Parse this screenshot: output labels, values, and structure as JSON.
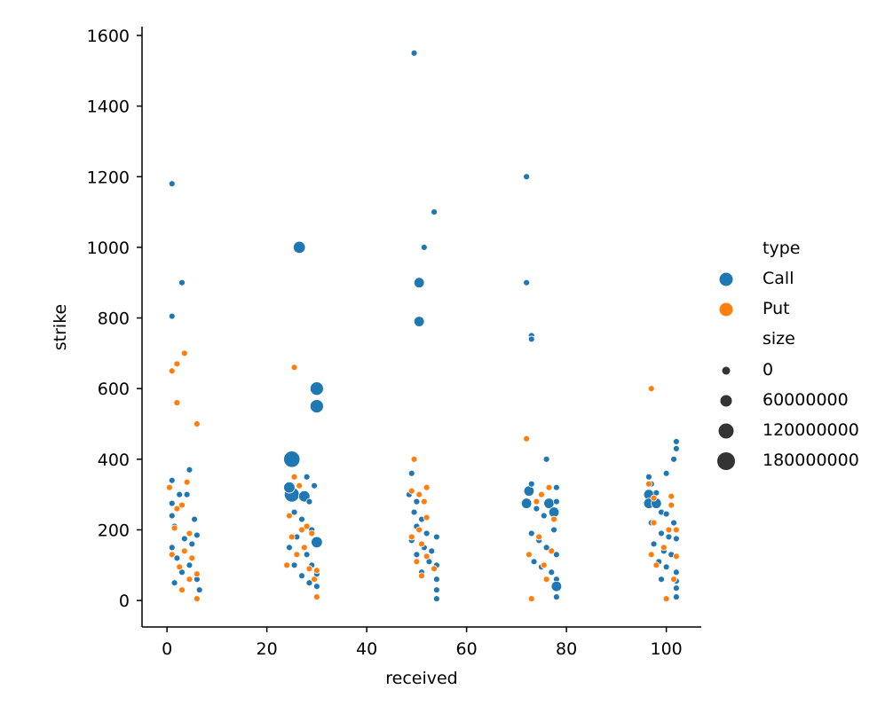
{
  "chart_data": {
    "type": "scatter",
    "title": "",
    "xlabel": "received",
    "ylabel": "strike",
    "xlim": [
      -5,
      107
    ],
    "ylim": [
      -75,
      1625
    ],
    "x_ticks": [
      0,
      20,
      40,
      60,
      80,
      100
    ],
    "y_ticks": [
      0,
      200,
      400,
      600,
      800,
      1000,
      1200,
      1400,
      1600
    ],
    "grid": false,
    "legend_placement": "right",
    "colors": {
      "Call": "#1f77b4",
      "Put": "#ff7f0e"
    },
    "legend": {
      "hue_title": "type",
      "hue_entries": [
        "Call",
        "Put"
      ],
      "size_title": "size",
      "size_entries": [
        "0",
        "60000000",
        "120000000",
        "180000000"
      ]
    },
    "series": [
      {
        "name": "Call",
        "points": [
          {
            "x": 1,
            "y": 1180,
            "size": 0
          },
          {
            "x": 3,
            "y": 900,
            "size": 0
          },
          {
            "x": 1,
            "y": 805,
            "size": 0
          },
          {
            "x": 1,
            "y": 340,
            "size": 0
          },
          {
            "x": 4.5,
            "y": 370,
            "size": 0
          },
          {
            "x": 2.5,
            "y": 300,
            "size": 0
          },
          {
            "x": 4,
            "y": 300,
            "size": 0
          },
          {
            "x": 1,
            "y": 275,
            "size": 0
          },
          {
            "x": 5.5,
            "y": 230,
            "size": 0
          },
          {
            "x": 1,
            "y": 240,
            "size": 0
          },
          {
            "x": 1.5,
            "y": 210,
            "size": 0
          },
          {
            "x": 6,
            "y": 185,
            "size": 0
          },
          {
            "x": 3.5,
            "y": 175,
            "size": 0
          },
          {
            "x": 5,
            "y": 160,
            "size": 0
          },
          {
            "x": 1,
            "y": 150,
            "size": 0
          },
          {
            "x": 2,
            "y": 120,
            "size": 0
          },
          {
            "x": 4.5,
            "y": 100,
            "size": 0
          },
          {
            "x": 6,
            "y": 60,
            "size": 0
          },
          {
            "x": 6.5,
            "y": 30,
            "size": 0
          },
          {
            "x": 3,
            "y": 80,
            "size": 0
          },
          {
            "x": 1.5,
            "y": 50,
            "size": 0
          },
          {
            "x": 26.5,
            "y": 1000,
            "size": 40000000
          },
          {
            "x": 30,
            "y": 600,
            "size": 60000000
          },
          {
            "x": 30,
            "y": 550,
            "size": 60000000
          },
          {
            "x": 25,
            "y": 400,
            "size": 120000000
          },
          {
            "x": 25,
            "y": 300,
            "size": 90000000
          },
          {
            "x": 28,
            "y": 350,
            "size": 0
          },
          {
            "x": 29.5,
            "y": 325,
            "size": 0
          },
          {
            "x": 24.5,
            "y": 320,
            "size": 30000000
          },
          {
            "x": 27.5,
            "y": 295,
            "size": 30000000
          },
          {
            "x": 28.5,
            "y": 280,
            "size": 0
          },
          {
            "x": 25.5,
            "y": 250,
            "size": 0
          },
          {
            "x": 27,
            "y": 230,
            "size": 0
          },
          {
            "x": 29,
            "y": 200,
            "size": 0
          },
          {
            "x": 30,
            "y": 165,
            "size": 30000000
          },
          {
            "x": 26,
            "y": 180,
            "size": 0
          },
          {
            "x": 24.5,
            "y": 150,
            "size": 0
          },
          {
            "x": 28,
            "y": 130,
            "size": 0
          },
          {
            "x": 29,
            "y": 100,
            "size": 0
          },
          {
            "x": 25.5,
            "y": 100,
            "size": 0
          },
          {
            "x": 27,
            "y": 70,
            "size": 0
          },
          {
            "x": 30,
            "y": 40,
            "size": 0
          },
          {
            "x": 30,
            "y": 75,
            "size": 0
          },
          {
            "x": 28.5,
            "y": 50,
            "size": 0
          },
          {
            "x": 49.5,
            "y": 1550,
            "size": 0
          },
          {
            "x": 53.5,
            "y": 1100,
            "size": 0
          },
          {
            "x": 51.5,
            "y": 1000,
            "size": 0
          },
          {
            "x": 50.5,
            "y": 900,
            "size": 20000000
          },
          {
            "x": 50.5,
            "y": 790,
            "size": 20000000
          },
          {
            "x": 49,
            "y": 360,
            "size": 0
          },
          {
            "x": 48.5,
            "y": 300,
            "size": 0
          },
          {
            "x": 50,
            "y": 280,
            "size": 0
          },
          {
            "x": 49.5,
            "y": 250,
            "size": 0
          },
          {
            "x": 51,
            "y": 230,
            "size": 0
          },
          {
            "x": 50,
            "y": 210,
            "size": 0
          },
          {
            "x": 52,
            "y": 190,
            "size": 0
          },
          {
            "x": 54,
            "y": 180,
            "size": 0
          },
          {
            "x": 49,
            "y": 170,
            "size": 0
          },
          {
            "x": 51.5,
            "y": 150,
            "size": 0
          },
          {
            "x": 53,
            "y": 140,
            "size": 0
          },
          {
            "x": 50,
            "y": 130,
            "size": 0
          },
          {
            "x": 52.5,
            "y": 110,
            "size": 0
          },
          {
            "x": 54,
            "y": 100,
            "size": 0
          },
          {
            "x": 54,
            "y": 60,
            "size": 0
          },
          {
            "x": 54,
            "y": 30,
            "size": 0
          },
          {
            "x": 54,
            "y": 5,
            "size": 0
          },
          {
            "x": 51,
            "y": 80,
            "size": 0
          },
          {
            "x": 72,
            "y": 1200,
            "size": 0
          },
          {
            "x": 72,
            "y": 900,
            "size": 0
          },
          {
            "x": 73,
            "y": 750,
            "size": 0
          },
          {
            "x": 73,
            "y": 740,
            "size": 0
          },
          {
            "x": 76,
            "y": 400,
            "size": 0
          },
          {
            "x": 72.5,
            "y": 310,
            "size": 20000000
          },
          {
            "x": 73,
            "y": 330,
            "size": 0
          },
          {
            "x": 72,
            "y": 275,
            "size": 20000000
          },
          {
            "x": 75,
            "y": 300,
            "size": 0
          },
          {
            "x": 78,
            "y": 320,
            "size": 0
          },
          {
            "x": 76.5,
            "y": 275,
            "size": 20000000
          },
          {
            "x": 78,
            "y": 280,
            "size": 0
          },
          {
            "x": 74,
            "y": 260,
            "size": 0
          },
          {
            "x": 75.5,
            "y": 240,
            "size": 0
          },
          {
            "x": 77.5,
            "y": 250,
            "size": 20000000
          },
          {
            "x": 77.5,
            "y": 200,
            "size": 0
          },
          {
            "x": 73,
            "y": 190,
            "size": 0
          },
          {
            "x": 74.5,
            "y": 170,
            "size": 0
          },
          {
            "x": 76,
            "y": 150,
            "size": 0
          },
          {
            "x": 78,
            "y": 130,
            "size": 0
          },
          {
            "x": 73.5,
            "y": 110,
            "size": 0
          },
          {
            "x": 75,
            "y": 95,
            "size": 0
          },
          {
            "x": 77,
            "y": 80,
            "size": 0
          },
          {
            "x": 78,
            "y": 60,
            "size": 0
          },
          {
            "x": 78,
            "y": 40,
            "size": 20000000
          },
          {
            "x": 78,
            "y": 10,
            "size": 0
          },
          {
            "x": 96.5,
            "y": 350,
            "size": 0
          },
          {
            "x": 102,
            "y": 450,
            "size": 0
          },
          {
            "x": 102,
            "y": 430,
            "size": 0
          },
          {
            "x": 101.5,
            "y": 400,
            "size": 0
          },
          {
            "x": 100,
            "y": 360,
            "size": 0
          },
          {
            "x": 97,
            "y": 330,
            "size": 0
          },
          {
            "x": 96.5,
            "y": 300,
            "size": 20000000
          },
          {
            "x": 98,
            "y": 305,
            "size": 0
          },
          {
            "x": 96.5,
            "y": 275,
            "size": 20000000
          },
          {
            "x": 98,
            "y": 275,
            "size": 20000000
          },
          {
            "x": 99,
            "y": 250,
            "size": 0
          },
          {
            "x": 100,
            "y": 245,
            "size": 0
          },
          {
            "x": 101.5,
            "y": 220,
            "size": 0
          },
          {
            "x": 97,
            "y": 220,
            "size": 0
          },
          {
            "x": 99,
            "y": 190,
            "size": 0
          },
          {
            "x": 100.5,
            "y": 180,
            "size": 0
          },
          {
            "x": 102,
            "y": 175,
            "size": 0
          },
          {
            "x": 97.5,
            "y": 160,
            "size": 0
          },
          {
            "x": 99.5,
            "y": 140,
            "size": 0
          },
          {
            "x": 101,
            "y": 130,
            "size": 0
          },
          {
            "x": 98.5,
            "y": 110,
            "size": 0
          },
          {
            "x": 100,
            "y": 95,
            "size": 0
          },
          {
            "x": 102,
            "y": 80,
            "size": 0
          },
          {
            "x": 102,
            "y": 55,
            "size": 0
          },
          {
            "x": 102,
            "y": 35,
            "size": 0
          },
          {
            "x": 102,
            "y": 10,
            "size": 0
          },
          {
            "x": 99,
            "y": 60,
            "size": 0
          }
        ]
      },
      {
        "name": "Put",
        "points": [
          {
            "x": 3.5,
            "y": 700,
            "size": 0
          },
          {
            "x": 2,
            "y": 670,
            "size": 0
          },
          {
            "x": 1,
            "y": 650,
            "size": 0
          },
          {
            "x": 2,
            "y": 560,
            "size": 0
          },
          {
            "x": 6,
            "y": 500,
            "size": 0
          },
          {
            "x": 4,
            "y": 335,
            "size": 0
          },
          {
            "x": 0.5,
            "y": 320,
            "size": 0
          },
          {
            "x": 3,
            "y": 270,
            "size": 0
          },
          {
            "x": 2,
            "y": 260,
            "size": 0
          },
          {
            "x": 1.5,
            "y": 205,
            "size": 0
          },
          {
            "x": 4.5,
            "y": 190,
            "size": 0
          },
          {
            "x": 3.5,
            "y": 140,
            "size": 0
          },
          {
            "x": 1,
            "y": 130,
            "size": 0
          },
          {
            "x": 5,
            "y": 120,
            "size": 0
          },
          {
            "x": 2.5,
            "y": 95,
            "size": 0
          },
          {
            "x": 6,
            "y": 75,
            "size": 0
          },
          {
            "x": 4.5,
            "y": 60,
            "size": 0
          },
          {
            "x": 3,
            "y": 30,
            "size": 0
          },
          {
            "x": 6,
            "y": 5,
            "size": 0
          },
          {
            "x": 25.5,
            "y": 660,
            "size": 0
          },
          {
            "x": 25.5,
            "y": 350,
            "size": 0
          },
          {
            "x": 26.5,
            "y": 325,
            "size": 0
          },
          {
            "x": 24.5,
            "y": 240,
            "size": 0
          },
          {
            "x": 28,
            "y": 210,
            "size": 0
          },
          {
            "x": 27,
            "y": 200,
            "size": 0
          },
          {
            "x": 29,
            "y": 190,
            "size": 0
          },
          {
            "x": 25,
            "y": 180,
            "size": 0
          },
          {
            "x": 27.5,
            "y": 150,
            "size": 0
          },
          {
            "x": 26,
            "y": 130,
            "size": 0
          },
          {
            "x": 24,
            "y": 100,
            "size": 0
          },
          {
            "x": 28.5,
            "y": 90,
            "size": 0
          },
          {
            "x": 30,
            "y": 85,
            "size": 0
          },
          {
            "x": 29.5,
            "y": 60,
            "size": 0
          },
          {
            "x": 30,
            "y": 10,
            "size": 0
          },
          {
            "x": 49.5,
            "y": 400,
            "size": 0
          },
          {
            "x": 49,
            "y": 310,
            "size": 0
          },
          {
            "x": 52,
            "y": 320,
            "size": 0
          },
          {
            "x": 50.5,
            "y": 300,
            "size": 0
          },
          {
            "x": 51.5,
            "y": 280,
            "size": 0
          },
          {
            "x": 52,
            "y": 235,
            "size": 0
          },
          {
            "x": 50.5,
            "y": 200,
            "size": 0
          },
          {
            "x": 49,
            "y": 180,
            "size": 0
          },
          {
            "x": 51,
            "y": 160,
            "size": 0
          },
          {
            "x": 52,
            "y": 125,
            "size": 0
          },
          {
            "x": 50,
            "y": 110,
            "size": 0
          },
          {
            "x": 53.5,
            "y": 90,
            "size": 0
          },
          {
            "x": 51,
            "y": 70,
            "size": 0
          },
          {
            "x": 72,
            "y": 458,
            "size": 0
          },
          {
            "x": 75,
            "y": 300,
            "size": 0
          },
          {
            "x": 76.5,
            "y": 320,
            "size": 0
          },
          {
            "x": 74,
            "y": 280,
            "size": 0
          },
          {
            "x": 77.5,
            "y": 230,
            "size": 0
          },
          {
            "x": 72.5,
            "y": 130,
            "size": 0
          },
          {
            "x": 74.5,
            "y": 180,
            "size": 0
          },
          {
            "x": 75.5,
            "y": 100,
            "size": 0
          },
          {
            "x": 77,
            "y": 140,
            "size": 0
          },
          {
            "x": 76,
            "y": 60,
            "size": 0
          },
          {
            "x": 73,
            "y": 5,
            "size": 0
          },
          {
            "x": 97,
            "y": 600,
            "size": 0
          },
          {
            "x": 96.5,
            "y": 330,
            "size": 0
          },
          {
            "x": 97.5,
            "y": 290,
            "size": 0
          },
          {
            "x": 101,
            "y": 295,
            "size": 0
          },
          {
            "x": 101,
            "y": 270,
            "size": 0
          },
          {
            "x": 97.5,
            "y": 220,
            "size": 0
          },
          {
            "x": 100.5,
            "y": 200,
            "size": 0
          },
          {
            "x": 102,
            "y": 200,
            "size": 0
          },
          {
            "x": 97,
            "y": 130,
            "size": 0
          },
          {
            "x": 99.5,
            "y": 150,
            "size": 0
          },
          {
            "x": 102,
            "y": 125,
            "size": 0
          },
          {
            "x": 98,
            "y": 100,
            "size": 0
          },
          {
            "x": 101.5,
            "y": 60,
            "size": 0
          },
          {
            "x": 100,
            "y": 5,
            "size": 0
          }
        ]
      }
    ]
  }
}
